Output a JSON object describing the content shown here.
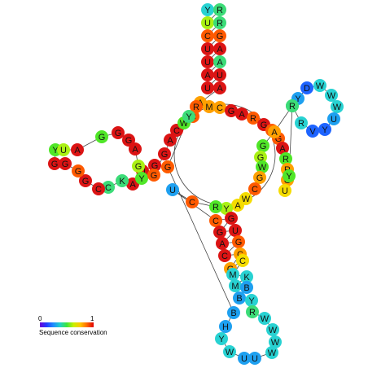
{
  "legend": {
    "min_label": "0",
    "max_label": "1",
    "title": "Sequence conservation",
    "stops": [
      "#6a00d8",
      "#1f3cff",
      "#1e8cff",
      "#20d0c8",
      "#3ce63c",
      "#c8f000",
      "#ffc800",
      "#ff6a00",
      "#e00000"
    ]
  },
  "colors": {
    "c0": "#1e64ff",
    "c1": "#1ea0f0",
    "c2": "#28d2d2",
    "c3": "#3cdc78",
    "c4": "#50e628",
    "c5": "#aaf014",
    "c6": "#f5dc00",
    "c7": "#ffa000",
    "c8": "#ff5a00",
    "c9": "#dc1414"
  },
  "nucleotides": [
    {
      "l": "Y",
      "c": "c2"
    },
    {
      "l": "R",
      "c": "c3"
    },
    {
      "l": "U",
      "c": "c5"
    },
    {
      "l": "R",
      "c": "c3"
    },
    {
      "l": "C",
      "c": "c8"
    },
    {
      "l": "G",
      "c": "c8"
    },
    {
      "l": "U",
      "c": "c9"
    },
    {
      "l": "A",
      "c": "c9"
    },
    {
      "l": "U",
      "c": "c9"
    },
    {
      "l": "A",
      "c": "c3"
    },
    {
      "l": "A",
      "c": "c9"
    },
    {
      "l": "U",
      "c": "c9"
    },
    {
      "l": "U",
      "c": "c9"
    },
    {
      "l": "A",
      "c": "c9"
    },
    {
      "l": "A",
      "c": "c7"
    },
    {
      "l": "M",
      "c": "c7"
    },
    {
      "l": "C",
      "c": "c7"
    },
    {
      "l": "G",
      "c": "c9"
    },
    {
      "l": "A",
      "c": "c9"
    },
    {
      "l": "R",
      "c": "c8"
    },
    {
      "l": "G",
      "c": "c9"
    },
    {
      "l": "G",
      "c": "c8"
    },
    {
      "l": "G",
      "c": "c8"
    },
    {
      "l": "A",
      "c": "c9"
    },
    {
      "l": "R",
      "c": "c4"
    },
    {
      "l": "R",
      "c": "c7"
    },
    {
      "l": "G",
      "c": "c7"
    },
    {
      "l": "U",
      "c": "c6"
    },
    {
      "l": "Y",
      "c": "c4"
    },
    {
      "l": "Y",
      "c": "c3"
    },
    {
      "l": "Y",
      "c": "c1"
    },
    {
      "l": "D",
      "c": "c0"
    },
    {
      "l": "W",
      "c": "c2"
    },
    {
      "l": "W",
      "c": "c2"
    },
    {
      "l": "W",
      "c": "c2"
    },
    {
      "l": "U",
      "c": "c1"
    },
    {
      "l": "Y",
      "c": "c0"
    },
    {
      "l": "V",
      "c": "c0"
    },
    {
      "l": "R",
      "c": "c2"
    },
    {
      "l": "R",
      "c": "c3"
    },
    {
      "l": "A",
      "c": "c7"
    },
    {
      "l": "G",
      "c": "c4"
    },
    {
      "l": "G",
      "c": "c5"
    },
    {
      "l": "W",
      "c": "c4"
    },
    {
      "l": "G",
      "c": "c7"
    },
    {
      "l": "C",
      "c": "c8"
    },
    {
      "l": "W",
      "c": "c6"
    },
    {
      "l": "A",
      "c": "c6"
    },
    {
      "l": "Y",
      "c": "c5"
    },
    {
      "l": "R",
      "c": "c4"
    },
    {
      "l": "C",
      "c": "c8"
    },
    {
      "l": "U",
      "c": "c1"
    },
    {
      "l": "C",
      "c": "c8"
    },
    {
      "l": "G",
      "c": "c9"
    },
    {
      "l": "G",
      "c": "c9"
    },
    {
      "l": "U",
      "c": "c9"
    },
    {
      "l": "A",
      "c": "c9"
    },
    {
      "l": "G",
      "c": "c8"
    },
    {
      "l": "C",
      "c": "c9"
    },
    {
      "l": "C",
      "c": "c7"
    },
    {
      "l": "G",
      "c": "c7"
    },
    {
      "l": "C",
      "c": "c6"
    },
    {
      "l": "M",
      "c": "c2"
    },
    {
      "l": "K",
      "c": "c2"
    },
    {
      "l": "M",
      "c": "c2"
    },
    {
      "l": "B",
      "c": "c1"
    },
    {
      "l": "B",
      "c": "c1"
    },
    {
      "l": "Y",
      "c": "c2"
    },
    {
      "l": "R",
      "c": "c3"
    },
    {
      "l": "W",
      "c": "c2"
    },
    {
      "l": "W",
      "c": "c2"
    },
    {
      "l": "W",
      "c": "c2"
    },
    {
      "l": "W",
      "c": "c2"
    },
    {
      "l": "U",
      "c": "c1"
    },
    {
      "l": "U",
      "c": "c1"
    },
    {
      "l": "W",
      "c": "c2"
    },
    {
      "l": "Y",
      "c": "c2"
    },
    {
      "l": "H",
      "c": "c1"
    },
    {
      "l": "B",
      "c": "c1"
    },
    {
      "l": "A",
      "c": "c6"
    },
    {
      "l": "G",
      "c": "c9"
    },
    {
      "l": "U",
      "c": "c9"
    },
    {
      "l": "A",
      "c": "c9"
    },
    {
      "l": "K",
      "c": "c3"
    },
    {
      "l": "C",
      "c": "c3"
    },
    {
      "l": "C",
      "c": "c9"
    },
    {
      "l": "G",
      "c": "c9"
    },
    {
      "l": "G",
      "c": "c8"
    },
    {
      "l": "G",
      "c": "c9"
    },
    {
      "l": "G",
      "c": "c9"
    },
    {
      "l": "Y",
      "c": "c4"
    },
    {
      "l": "U",
      "c": "c5"
    },
    {
      "l": "A",
      "c": "c9"
    },
    {
      "l": "G",
      "c": "c4"
    },
    {
      "l": "G",
      "c": "c9"
    },
    {
      "l": "G",
      "c": "c9"
    },
    {
      "l": "A",
      "c": "c9"
    },
    {
      "l": "G",
      "c": "c5"
    },
    {
      "l": "Y",
      "c": "c4"
    },
    {
      "l": "G",
      "c": "c8"
    },
    {
      "l": "G",
      "c": "c9"
    },
    {
      "l": "A",
      "c": "c9"
    },
    {
      "l": "C",
      "c": "c9"
    },
    {
      "l": "W",
      "c": "c4"
    },
    {
      "l": "C",
      "c": "c8"
    },
    {
      "l": "R",
      "c": "c8"
    },
    {
      "l": "Y",
      "c": "c3"
    },
    {
      "l": "G",
      "c": "c8"
    }
  ]
}
